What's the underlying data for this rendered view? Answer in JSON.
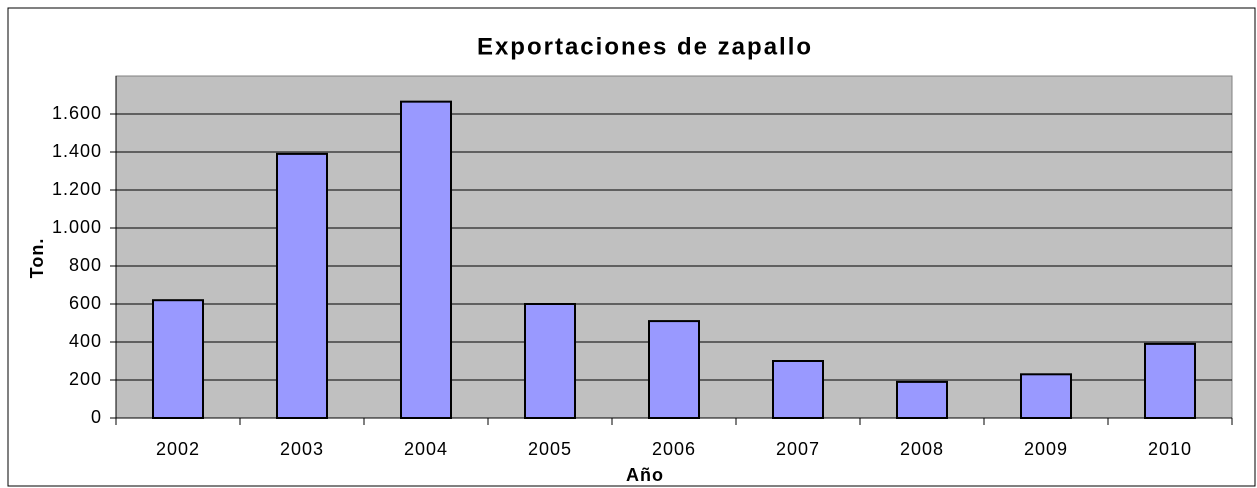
{
  "chart_data": {
    "type": "bar",
    "title": "Exportaciones de zapallo",
    "x_label": "Año",
    "y_label": "Ton.",
    "categories": [
      "2002",
      "2003",
      "2004",
      "2005",
      "2006",
      "2007",
      "2008",
      "2009",
      "2010"
    ],
    "values": [
      620,
      1390,
      1665,
      600,
      510,
      300,
      190,
      230,
      390
    ],
    "color": "#9999ff",
    "ylim": [
      0,
      1800
    ],
    "yticks": [
      0,
      200,
      400,
      600,
      800,
      {
        "value": 1000,
        "label": "1.000"
      },
      {
        "value": 1200,
        "label": "1.200"
      },
      {
        "value": 1400,
        "label": "1.400"
      },
      {
        "value": 1600,
        "label": "1.600"
      }
    ],
    "grid": true
  }
}
